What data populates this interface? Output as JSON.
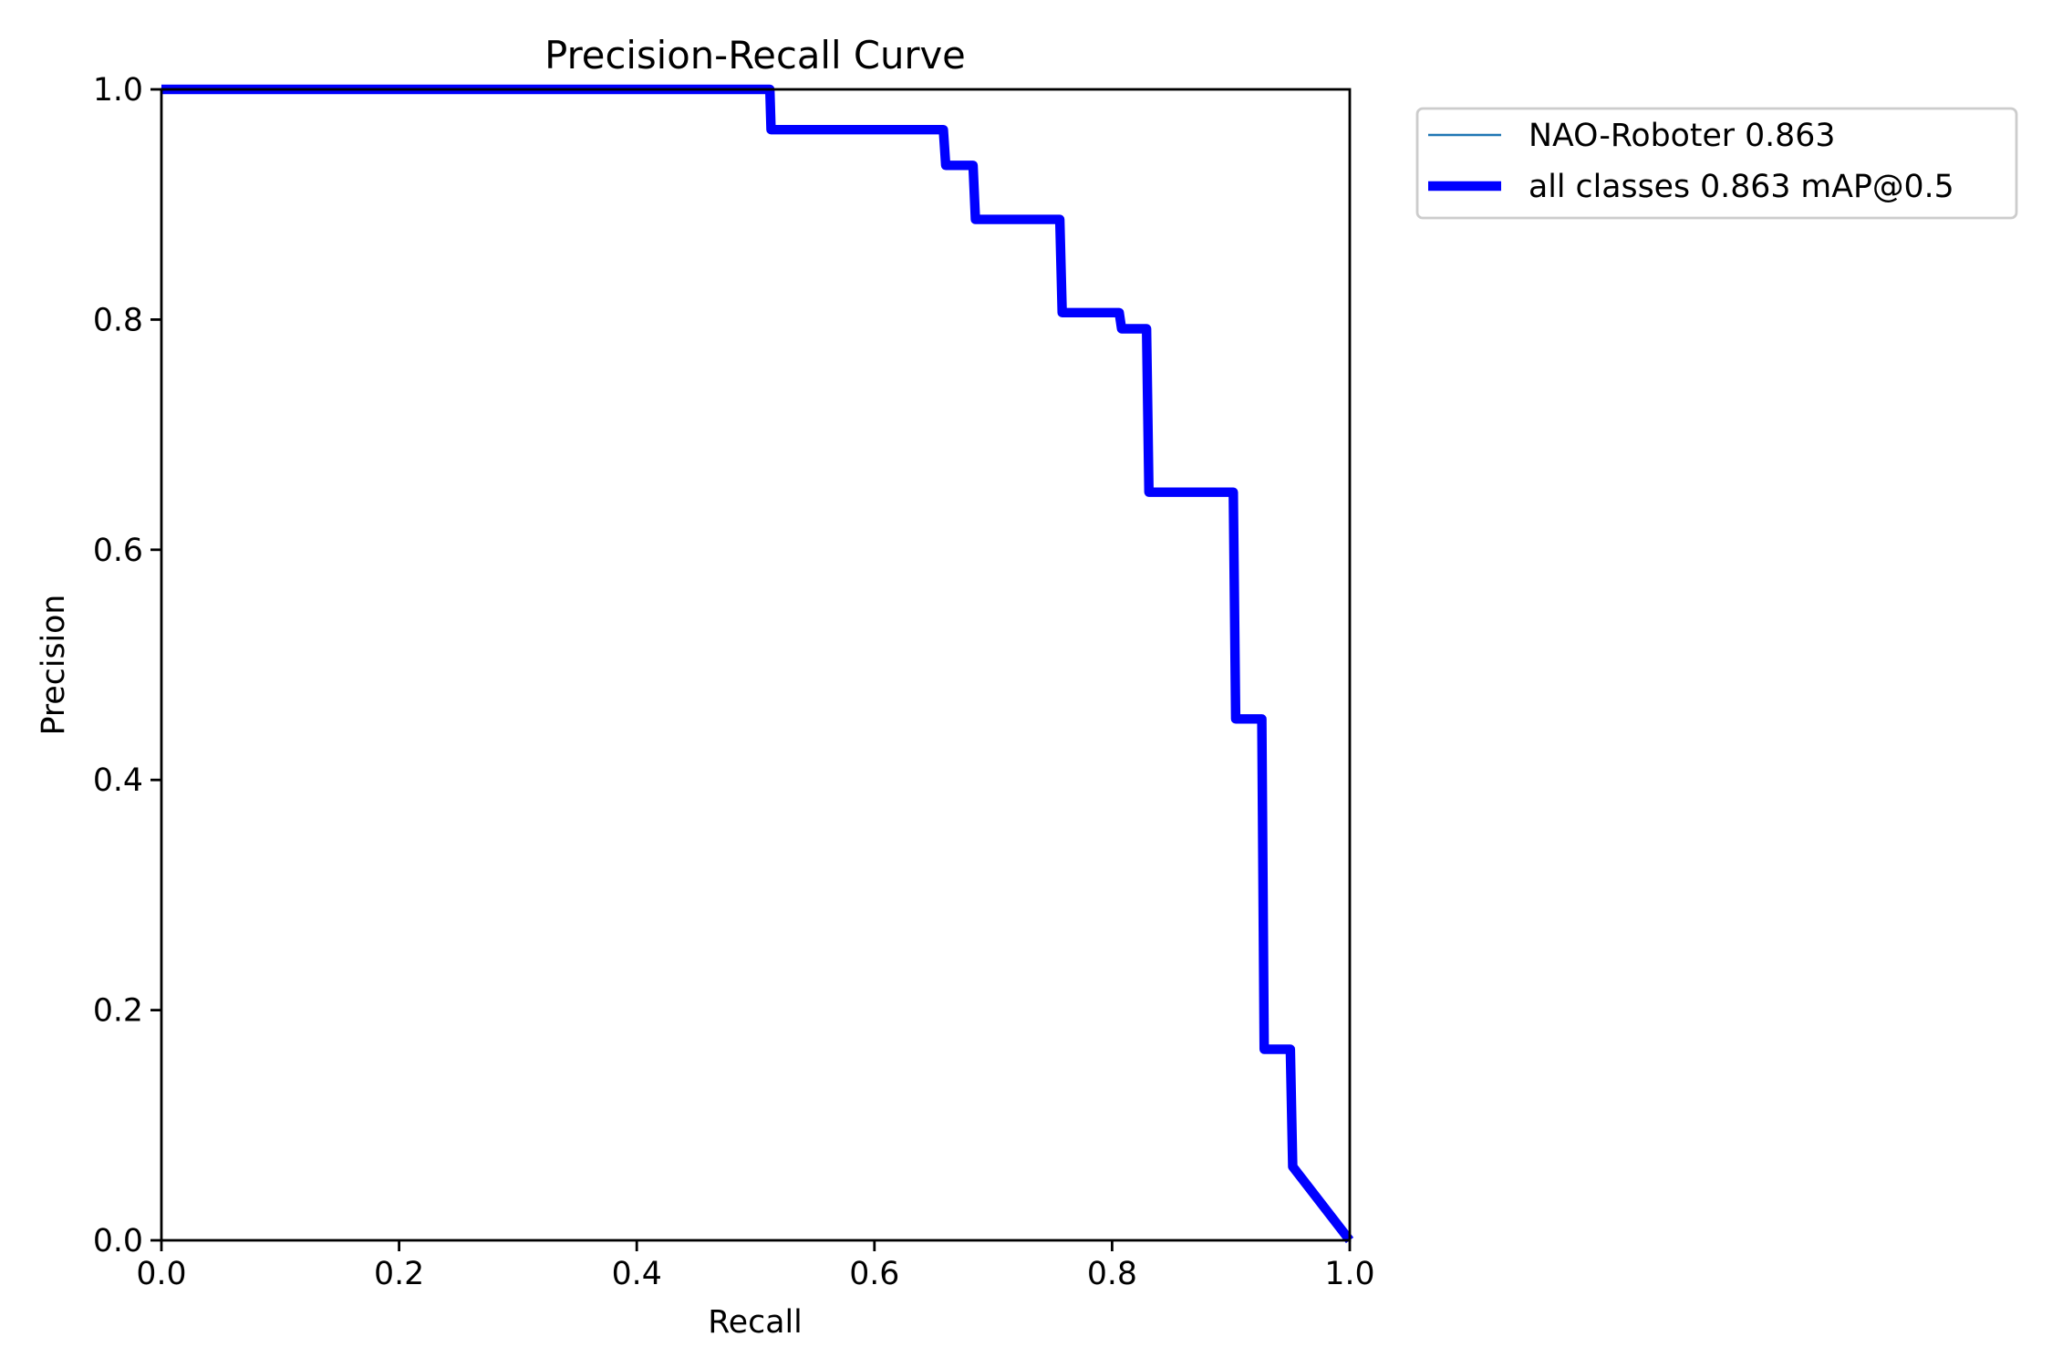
{
  "chart_data": {
    "type": "line",
    "title": "Precision-Recall Curve",
    "xlabel": "Recall",
    "ylabel": "Precision",
    "xlim": [
      0,
      1
    ],
    "ylim": [
      0,
      1
    ],
    "grid": false,
    "legend_placement": "outside-top-right",
    "xticks": [
      "0.0",
      "0.2",
      "0.4",
      "0.6",
      "0.8",
      "1.0"
    ],
    "yticks": [
      "0.0",
      "0.2",
      "0.4",
      "0.6",
      "0.8",
      "1.0"
    ],
    "series": [
      {
        "name": "NAO-Roboter 0.863",
        "color": "#1f77b4",
        "x": [
          0,
          0.512,
          0.513,
          0.658,
          0.66,
          0.683,
          0.685,
          0.756,
          0.758,
          0.806,
          0.808,
          0.829,
          0.831,
          0.902,
          0.904,
          0.926,
          0.928,
          0.95,
          0.952,
          1.0
        ],
        "y": [
          1,
          1,
          0.965,
          0.965,
          0.934,
          0.934,
          0.887,
          0.887,
          0.806,
          0.806,
          0.792,
          0.792,
          0.65,
          0.65,
          0.453,
          0.453,
          0.166,
          0.166,
          0.064,
          0.0
        ]
      },
      {
        "name": "all classes 0.863 mAP@0.5",
        "color": "#0000ff",
        "x": [
          0,
          0.512,
          0.513,
          0.658,
          0.66,
          0.683,
          0.685,
          0.756,
          0.758,
          0.806,
          0.808,
          0.829,
          0.831,
          0.902,
          0.904,
          0.926,
          0.928,
          0.95,
          0.952,
          1.0
        ],
        "y": [
          1,
          1,
          0.965,
          0.965,
          0.934,
          0.934,
          0.887,
          0.887,
          0.806,
          0.806,
          0.792,
          0.792,
          0.65,
          0.65,
          0.453,
          0.453,
          0.166,
          0.166,
          0.064,
          0.0
        ]
      }
    ]
  }
}
